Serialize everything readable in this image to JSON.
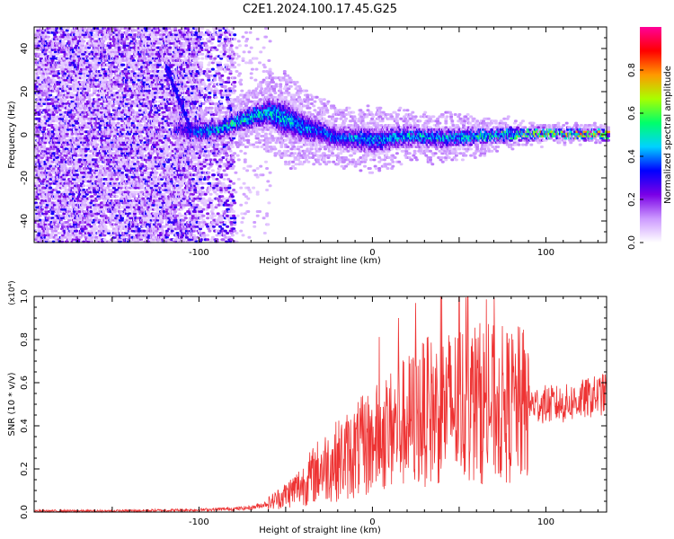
{
  "figure": {
    "title": "C2E1.2024.100.17.45.G25"
  },
  "chart_data": [
    {
      "type": "heatmap",
      "title": "C2E1.2024.100.17.45.G25",
      "xlabel": "Height of straight line (km)",
      "ylabel": "Frequency (Hz)",
      "xlim": [
        -195,
        135
      ],
      "ylim": [
        -50,
        50
      ],
      "xticks": [
        -100,
        0,
        100
      ],
      "yticks": [
        -40,
        -20,
        0,
        20,
        40
      ],
      "colorbar": {
        "label": "Normalized spectral amplitude",
        "range": [
          0,
          1
        ],
        "ticks": [
          0.0,
          0.2,
          0.4,
          0.6,
          0.8
        ],
        "colormap": "rainbow",
        "colors": [
          "#ffffff",
          "#cc99ff",
          "#7a00e6",
          "#0000ff",
          "#00d2ff",
          "#00ff6a",
          "#a8ff00",
          "#ff9900",
          "#ff0000",
          "#ff0099"
        ]
      },
      "ridge": {
        "x": [
          -110,
          -100,
          -90,
          -80,
          -70,
          -60,
          -50,
          -40,
          -30,
          -20,
          -10,
          0,
          20,
          40,
          60,
          80,
          100,
          120,
          135
        ],
        "y": [
          2,
          1,
          2,
          5,
          8,
          10,
          7,
          3,
          1,
          -2,
          -2,
          -3,
          -1,
          -2,
          -1,
          0,
          0,
          0,
          0
        ],
        "amplitude": [
          0.3,
          0.45,
          0.5,
          0.55,
          0.55,
          0.5,
          0.5,
          0.45,
          0.4,
          0.42,
          0.45,
          0.45,
          0.5,
          0.5,
          0.55,
          0.6,
          0.75,
          0.85,
          0.85
        ],
        "spread": [
          6,
          5,
          5,
          5,
          6,
          8,
          10,
          8,
          7,
          6,
          6,
          7,
          5,
          5,
          4,
          3,
          2,
          2,
          2
        ]
      },
      "noise_region": {
        "xmin": -195,
        "xmax": -80
      },
      "streak": {
        "x": [
          -120,
          -105
        ],
        "y": [
          32,
          2
        ]
      }
    },
    {
      "type": "line",
      "xlabel": "Height of straight line (km)",
      "ylabel": "SNR (10 * v/v)",
      "yscale_label": "(x10⁴)",
      "xlim": [
        -195,
        135
      ],
      "ylim": [
        0,
        1.0
      ],
      "xticks": [
        -100,
        0,
        100
      ],
      "yticks": [
        0.0,
        0.2,
        0.4,
        0.6,
        0.8,
        1.0
      ],
      "series": [
        {
          "color": "#ee3333",
          "x": [
            -195,
            -150,
            -100,
            -80,
            -70,
            -60,
            -50,
            -40,
            -30,
            -20,
            -10,
            0,
            10,
            20,
            30,
            40,
            50,
            60,
            70,
            80,
            90,
            100,
            110,
            120,
            135
          ],
          "y": [
            0.005,
            0.005,
            0.01,
            0.015,
            0.02,
            0.04,
            0.08,
            0.13,
            0.2,
            0.24,
            0.28,
            0.33,
            0.38,
            0.42,
            0.46,
            0.48,
            0.5,
            0.51,
            0.5,
            0.49,
            0.5,
            0.5,
            0.5,
            0.52,
            0.55
          ],
          "peaks_x": [
            15,
            25,
            40,
            50,
            55
          ],
          "peaks_y": [
            0.9,
            0.97,
            1.0,
            1.02,
            1.0
          ]
        }
      ]
    }
  ]
}
